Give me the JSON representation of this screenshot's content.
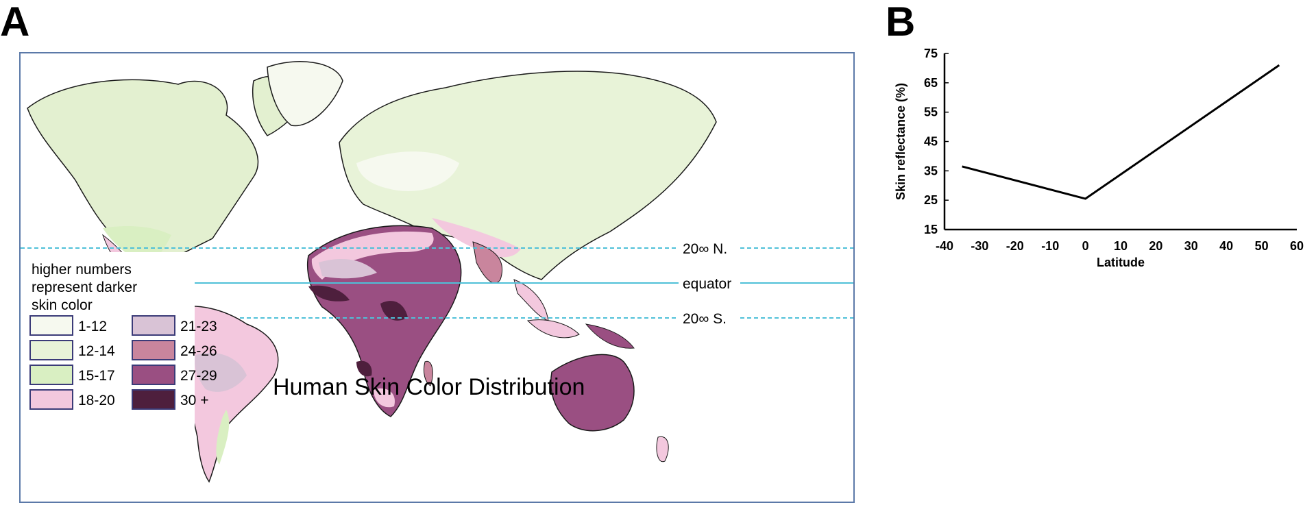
{
  "panel_a": {
    "letter": "A",
    "title": "Human Skin Color Distribution",
    "legend_caption": [
      "higher numbers",
      "represent darker",
      "skin color"
    ],
    "legend": [
      {
        "label": "1-12",
        "color": "#f6f9ef"
      },
      {
        "label": "12-14",
        "color": "#e8f3d8"
      },
      {
        "label": "15-17",
        "color": "#d9efc2"
      },
      {
        "label": "18-20",
        "color": "#f3c8de"
      },
      {
        "label": "21-23",
        "color": "#d9c3d6"
      },
      {
        "label": "24-26",
        "color": "#c9859d"
      },
      {
        "label": "27-29",
        "color": "#9a4f82"
      },
      {
        "label": "30 +",
        "color": "#4e1f3d"
      }
    ],
    "latitude_lines": [
      {
        "label": "20∞ N.",
        "style": "dashed"
      },
      {
        "label": "equator",
        "style": "solid"
      },
      {
        "label": "20∞ S.",
        "style": "dashed"
      }
    ],
    "line_color": "#4ec0d8",
    "border_color": "#5b79a8"
  },
  "panel_b": {
    "letter": "B"
  },
  "chart_data": {
    "type": "line",
    "title": "",
    "xlabel": "Latitude",
    "ylabel": "Skin reflectance (%)",
    "xlim": [
      -40,
      60
    ],
    "ylim": [
      15,
      75
    ],
    "x_ticks": [
      -40,
      -30,
      -20,
      -10,
      0,
      10,
      20,
      30,
      40,
      50,
      60
    ],
    "y_ticks": [
      15,
      25,
      35,
      45,
      55,
      65,
      75
    ],
    "series": [
      {
        "x": [
          -35,
          0,
          55
        ],
        "y": [
          36.5,
          25.5,
          71
        ]
      }
    ],
    "grid": false
  }
}
